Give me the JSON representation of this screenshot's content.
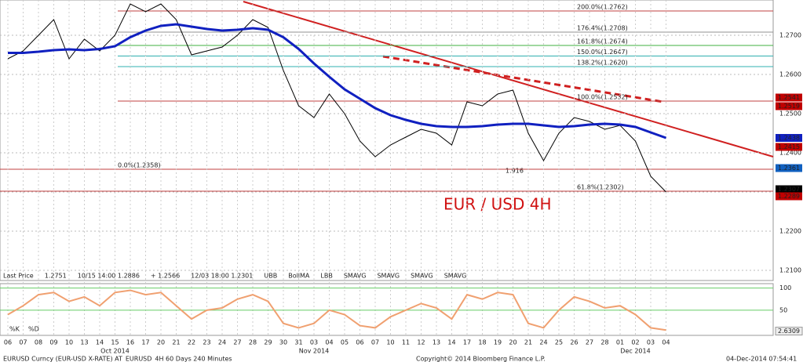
{
  "chart_data": {
    "type": "line",
    "title": "EUR / USD 4H",
    "categories": [
      "06",
      "07",
      "08",
      "09",
      "10",
      "13",
      "14",
      "15",
      "16",
      "17",
      "20",
      "21",
      "22",
      "23",
      "24",
      "27",
      "28",
      "29",
      "30",
      "31",
      "03",
      "04",
      "05",
      "06",
      "07",
      "10",
      "11",
      "12",
      "13",
      "14",
      "17",
      "18",
      "19",
      "20",
      "21",
      "24",
      "25",
      "26",
      "27",
      "28",
      "01",
      "02",
      "03",
      "04"
    ],
    "months": [
      "Oct 2014",
      "Nov 2014",
      "Dec 2014"
    ],
    "series": [
      {
        "name": "Last Price",
        "color": "#000000",
        "values": [
          1.264,
          1.266,
          1.27,
          1.274,
          1.264,
          1.269,
          1.266,
          1.27,
          1.278,
          1.276,
          1.278,
          1.274,
          1.265,
          1.266,
          1.267,
          1.27,
          1.274,
          1.272,
          1.261,
          1.252,
          1.249,
          1.255,
          1.25,
          1.243,
          1.239,
          1.242,
          1.244,
          1.246,
          1.245,
          1.242,
          1.253,
          1.252,
          1.255,
          1.256,
          1.245,
          1.238,
          1.245,
          1.249,
          1.248,
          1.246,
          1.247,
          1.243,
          1.234,
          1.23
        ]
      },
      {
        "name": "SMAVG",
        "color": "#1020c0",
        "values": [
          1.2655,
          1.2655,
          1.2658,
          1.2662,
          1.2664,
          1.2662,
          1.2665,
          1.2672,
          1.2695,
          1.2712,
          1.2724,
          1.2728,
          1.2722,
          1.2716,
          1.2712,
          1.2714,
          1.2718,
          1.2714,
          1.2695,
          1.2665,
          1.2628,
          1.2594,
          1.2562,
          1.2538,
          1.2514,
          1.2496,
          1.2484,
          1.2474,
          1.2468,
          1.2466,
          1.2466,
          1.2468,
          1.2472,
          1.2474,
          1.2474,
          1.247,
          1.2466,
          1.2468,
          1.2472,
          1.2474,
          1.2472,
          1.2466,
          1.2452,
          1.2438
        ]
      }
    ],
    "ylim": [
      1.2074,
      1.279
    ],
    "yticks": [
      {
        "value": 1.21,
        "label": "1.2100"
      },
      {
        "value": 1.22,
        "label": "1.2200"
      },
      {
        "value": 1.23,
        "label": "1.2300"
      },
      {
        "value": 1.24,
        "label": "1.2400"
      },
      {
        "value": 1.25,
        "label": "1.2500"
      },
      {
        "value": 1.26,
        "label": "1.2600"
      },
      {
        "value": 1.27,
        "label": "1.2700"
      }
    ],
    "price_tags": [
      {
        "value": 1.2541,
        "color": "#c00000"
      },
      {
        "value": 1.2519,
        "color": "#c00000"
      },
      {
        "value": 1.2438,
        "color": "#1020c0"
      },
      {
        "value": 1.2415,
        "color": "#c00000"
      },
      {
        "value": 1.2361,
        "color": "#1060c0"
      },
      {
        "value": 1.2307,
        "color": "#000000"
      },
      {
        "value": 1.2289,
        "color": "#c00000"
      }
    ],
    "fib_levels": [
      {
        "label": "200.0%(1.2762)",
        "value": 1.2762,
        "color": "#c04040"
      },
      {
        "label": "176.4%(1.2708)",
        "value": 1.2708,
        "color": "#909090"
      },
      {
        "label": "161.8%(1.2674)",
        "value": 1.2674,
        "color": "#40b040"
      },
      {
        "label": "150.0%(1.2647)",
        "value": 1.2647,
        "color": "#30b0b0"
      },
      {
        "label": "138.2%(1.2620)",
        "value": 1.262,
        "color": "#30b0b0"
      },
      {
        "label": "100.0%(1.2532)",
        "value": 1.2532,
        "color": "#c04040"
      },
      {
        "label": "0.0%(1.2358)",
        "value": 1.2358,
        "color": "#c04040"
      },
      {
        "label": "61.8%(1.2302)",
        "value": 1.2302,
        "color": "#c04040"
      }
    ],
    "annotation": "1.916",
    "legend": [
      "Last Price",
      "1.2751",
      "10/15 14:00 1.2886",
      "+ 1.2566",
      "12/03 18:00 1.2301",
      "UBB",
      "BollMA",
      "LBB",
      "SMAVG",
      "SMAVG",
      "SMAVG",
      "SMAVG"
    ],
    "oscillator": {
      "ylim": [
        -7,
        110
      ],
      "yticks": [
        100,
        50
      ],
      "color": "#f0a070",
      "values": [
        40,
        60,
        85,
        90,
        70,
        80,
        60,
        90,
        95,
        85,
        90,
        60,
        30,
        50,
        55,
        75,
        85,
        70,
        20,
        10,
        20,
        50,
        40,
        15,
        10,
        35,
        50,
        65,
        55,
        30,
        85,
        75,
        90,
        85,
        20,
        10,
        50,
        80,
        70,
        55,
        60,
        40,
        10,
        5
      ],
      "tag": 2.6309,
      "legend": [
        "%K",
        "%D"
      ]
    },
    "footer": {
      "left": "EURUSD Curncy (EUR-USD X-RATE) AT_EURUSD_4H 60 Days 240 Minutes",
      "center": "Copyright© 2014 Bloomberg Finance L.P.",
      "right": "04-Dec-2014 07:54:41"
    }
  }
}
